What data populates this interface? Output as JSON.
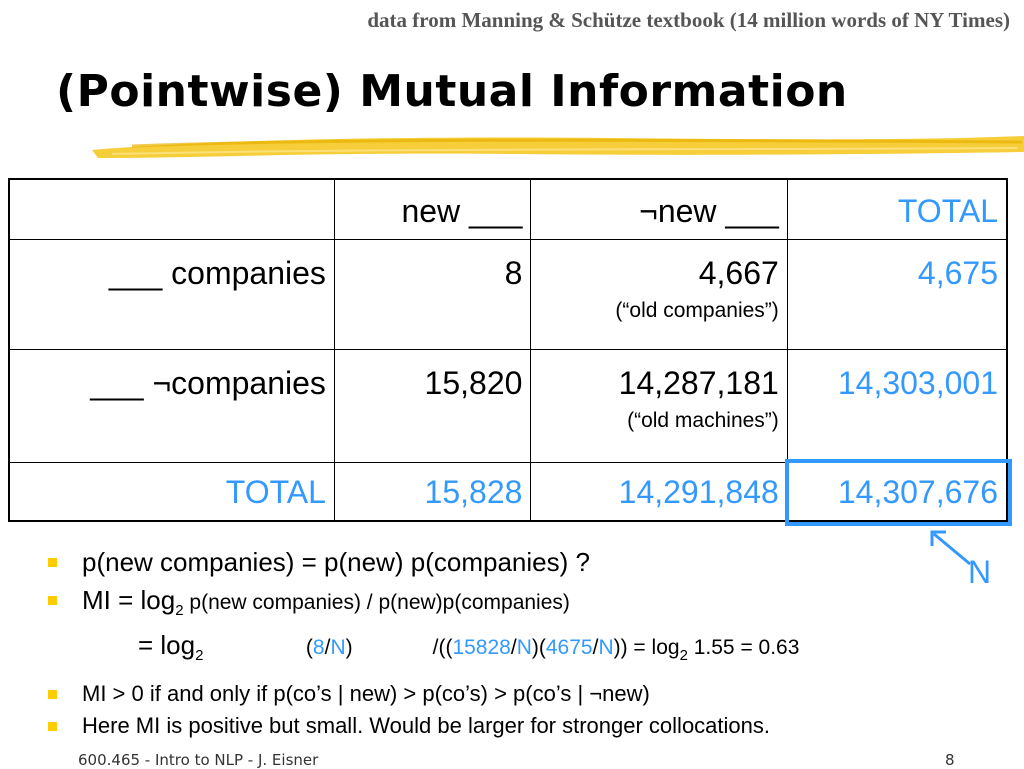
{
  "header": {
    "source_note": "data from Manning & Schütze textbook (14 million words of NY Times)",
    "title": "(Pointwise) Mutual Information"
  },
  "table": {
    "col_headers": [
      "",
      "new ___",
      "¬new ___",
      "TOTAL"
    ],
    "rows": [
      {
        "label": "___ companies",
        "c1": "8",
        "c2": "4,667",
        "c2_note": "(“old companies”)",
        "total": "4,675"
      },
      {
        "label": "___ ¬companies",
        "c1": "15,820",
        "c2": "14,287,181",
        "c2_note": "(“old machines”)",
        "total": "14,303,001"
      },
      {
        "label": "TOTAL",
        "c1": "15,828",
        "c2": "14,291,848",
        "c2_note": "",
        "total": "14,307,676"
      }
    ],
    "n_label": "N"
  },
  "bullets": {
    "b1": "p(new companies) = p(new) p(companies) ?",
    "mi": {
      "lead": "MI = log",
      "sub": "2",
      "formula": " p(new companies) /  p(new)p(companies)",
      "line2_lead": "= log",
      "line2_sub": "2",
      "open1": "(",
      "num8": "8",
      "slash": "/",
      "N": "N",
      "close1": ")",
      "mid": "/((",
      "num15828": "15828",
      "close_open": ")(",
      "num4675": "4675",
      "end_lead": ")) = log",
      "end_sub": "2",
      "end_val": " 1.55 = 0.63"
    },
    "b3": "MI > 0   if and only if   p(co’s | new) > p(co’s) > p(co’s | ¬new)",
    "b4": "Here MI is positive but small.  Would be larger for stronger collocations."
  },
  "footer": {
    "course": "600.465 - Intro to NLP - J. Eisner",
    "page": "8"
  },
  "colors": {
    "accent_blue": "#3399ff",
    "bullet_yellow": "#ffcc00",
    "highlight_yellow": "#f5c518"
  }
}
